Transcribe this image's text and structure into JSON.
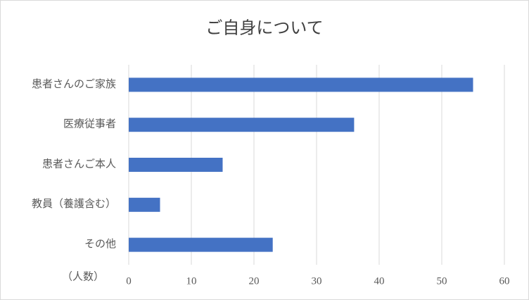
{
  "chart_data": {
    "type": "bar",
    "orientation": "horizontal",
    "title": "ご自身について",
    "x_axis_label": "（人数）",
    "categories": [
      "患者さんのご家族",
      "医療従事者",
      "患者さんご本人",
      "教員（養護含む）",
      "その他"
    ],
    "values": [
      55,
      36,
      15,
      5,
      23
    ],
    "color": "#4472c4",
    "xlim": [
      0,
      60
    ],
    "xticks": [
      0,
      10,
      20,
      30,
      40,
      50,
      60
    ],
    "grid": true
  }
}
